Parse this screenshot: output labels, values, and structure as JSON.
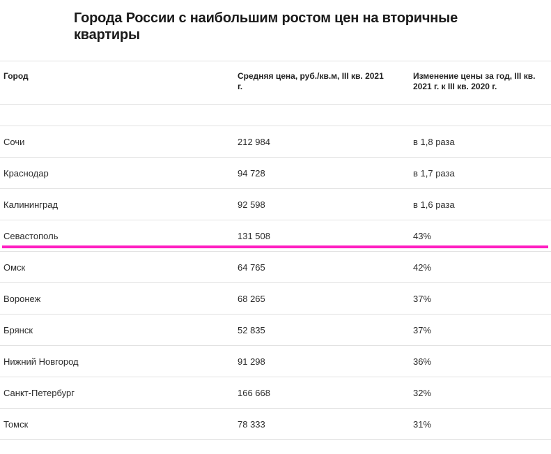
{
  "title": "Города России с наибольшим ростом цен на вторичные квартиры",
  "headers": {
    "city": "Город",
    "price": "Средняя цена, руб./кв.м, III кв. 2021 г.",
    "change": "Изменение цены за год, III кв. 2021 г. к III кв. 2020 г."
  },
  "rows": [
    {
      "city": "Сочи",
      "price": "212 984",
      "change": "в 1,8 раза"
    },
    {
      "city": "Краснодар",
      "price": "94 728",
      "change": "в 1,7 раза"
    },
    {
      "city": "Калининград",
      "price": "92 598",
      "change": "в 1,6 раза"
    },
    {
      "city": "Севастополь",
      "price": "131 508",
      "change": "43%"
    },
    {
      "city": "Омск",
      "price": "64 765",
      "change": "42%"
    },
    {
      "city": "Воронеж",
      "price": "68 265",
      "change": "37%"
    },
    {
      "city": "Брянск",
      "price": "52 835",
      "change": "37%"
    },
    {
      "city": "Нижний Новгород",
      "price": "91 298",
      "change": "36%"
    },
    {
      "city": "Санкт-Петербург",
      "price": "166 668",
      "change": "32%"
    },
    {
      "city": "Томск",
      "price": "78 333",
      "change": "31%"
    }
  ],
  "colors": {
    "highlight_line": "#ff1ec1"
  }
}
